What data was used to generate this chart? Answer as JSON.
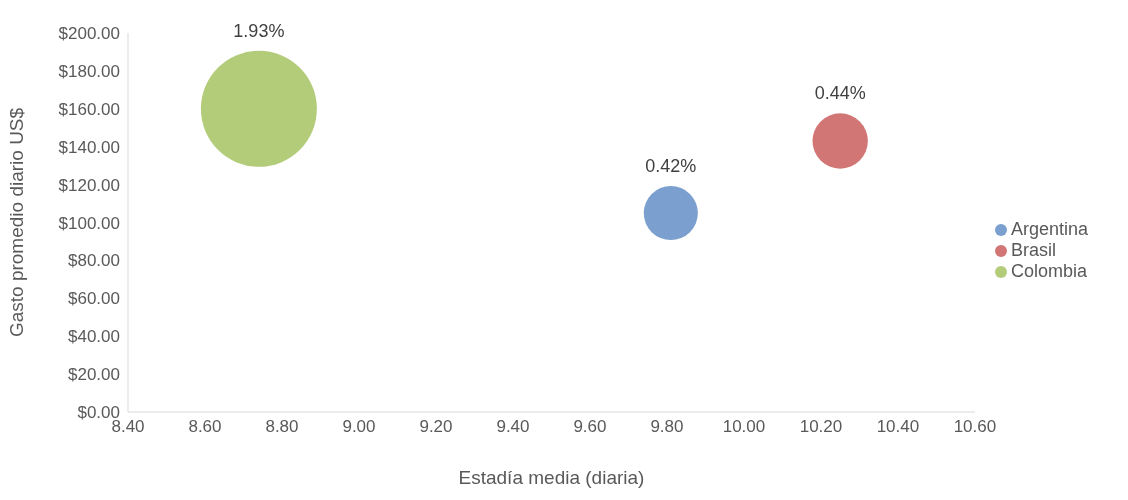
{
  "chart_data": {
    "type": "bubble",
    "xlabel": "Estadía media (diaria)",
    "ylabel": "Gasto promedio diario US$",
    "xlim": [
      8.4,
      10.6
    ],
    "xticks": [
      {
        "value": 8.4,
        "label": "8.40"
      },
      {
        "value": 8.6,
        "label": "8.60"
      },
      {
        "value": 8.8,
        "label": "8.80"
      },
      {
        "value": 9.0,
        "label": "9.00"
      },
      {
        "value": 9.2,
        "label": "9.20"
      },
      {
        "value": 9.4,
        "label": "9.40"
      },
      {
        "value": 9.6,
        "label": "9.60"
      },
      {
        "value": 9.8,
        "label": "9.80"
      },
      {
        "value": 10.0,
        "label": "10.00"
      },
      {
        "value": 10.2,
        "label": "10.20"
      },
      {
        "value": 10.4,
        "label": "10.40"
      },
      {
        "value": 10.6,
        "label": "10.60"
      }
    ],
    "ylim": [
      0,
      200
    ],
    "yticks": [
      {
        "value": 0,
        "label": "$0.00"
      },
      {
        "value": 20,
        "label": "$20.00"
      },
      {
        "value": 40,
        "label": "$40.00"
      },
      {
        "value": 60,
        "label": "$60.00"
      },
      {
        "value": 80,
        "label": "$80.00"
      },
      {
        "value": 100,
        "label": "$100.00"
      },
      {
        "value": 120,
        "label": "$120.00"
      },
      {
        "value": 140,
        "label": "$140.00"
      },
      {
        "value": 160,
        "label": "$160.00"
      },
      {
        "value": 180,
        "label": "$180.00"
      },
      {
        "value": 200,
        "label": "$200.00"
      }
    ],
    "series": [
      {
        "name": "Argentina",
        "color": "#7ba0cf",
        "x": [
          9.81
        ],
        "values": [
          105
        ],
        "sizes": [
          0.42
        ],
        "value_labels": [
          "0.42%"
        ]
      },
      {
        "name": "Brasil",
        "color": "#d27575",
        "x": [
          10.25
        ],
        "values": [
          143
        ],
        "sizes": [
          0.44
        ],
        "value_labels": [
          "0.44%"
        ]
      },
      {
        "name": "Colombia",
        "color": "#b3cc7a",
        "x": [
          8.74
        ],
        "values": [
          160
        ],
        "sizes": [
          1.93
        ],
        "value_labels": [
          "1.93%"
        ]
      }
    ],
    "grid": false,
    "legend": "right"
  }
}
